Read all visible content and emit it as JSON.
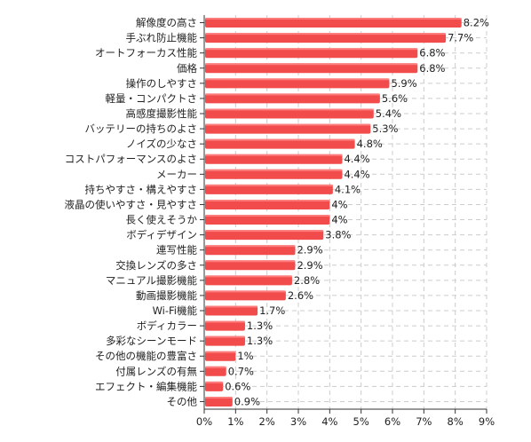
{
  "chart_data": {
    "type": "bar",
    "orientation": "horizontal",
    "categories": [
      "解像度の高さ",
      "手ぶれ防止機能",
      "オートフォーカス性能",
      "価格",
      "操作のしやすさ",
      "軽量・コンパクトさ",
      "高感度撮影性能",
      "バッテリーの持ちのよさ",
      "ノイズの少なさ",
      "コストパフォーマンスのよさ",
      "メーカー",
      "持ちやすさ・構えやすさ",
      "液晶の使いやすさ・見やすさ",
      "長く使えそうか",
      "ボディデザイン",
      "連写性能",
      "交換レンズの多さ",
      "マニュアル撮影機能",
      "動画撮影機能",
      "Wi-Fi機能",
      "ボディカラー",
      "多彩なシーンモード",
      "その他の機能の豊富さ",
      "付属レンズの有無",
      "エフェクト・編集機能",
      "その他"
    ],
    "values": [
      8.2,
      7.7,
      6.8,
      6.8,
      5.9,
      5.6,
      5.4,
      5.3,
      4.8,
      4.4,
      4.4,
      4.1,
      4,
      4,
      3.8,
      2.9,
      2.9,
      2.8,
      2.6,
      1.7,
      1.3,
      1.3,
      1,
      0.7,
      0.6,
      0.9
    ],
    "value_labels": [
      "8.2%",
      "7.7%",
      "6.8%",
      "6.8%",
      "5.9%",
      "5.6%",
      "5.4%",
      "5.3%",
      "4.8%",
      "4.4%",
      "4.4%",
      "4.1%",
      "4%",
      "4%",
      "3.8%",
      "2.9%",
      "2.9%",
      "2.8%",
      "2.6%",
      "1.7%",
      "1.3%",
      "1.3%",
      "1%",
      "0.7%",
      "0.6%",
      "0.9%"
    ],
    "x_ticks": [
      "0%",
      "1%",
      "2%",
      "3%",
      "4%",
      "5%",
      "6%",
      "7%",
      "8%",
      "9%"
    ],
    "xlim": [
      0,
      9
    ],
    "grid": true,
    "bar_color": "#f24b4b",
    "title": "",
    "xlabel": "",
    "ylabel": ""
  }
}
